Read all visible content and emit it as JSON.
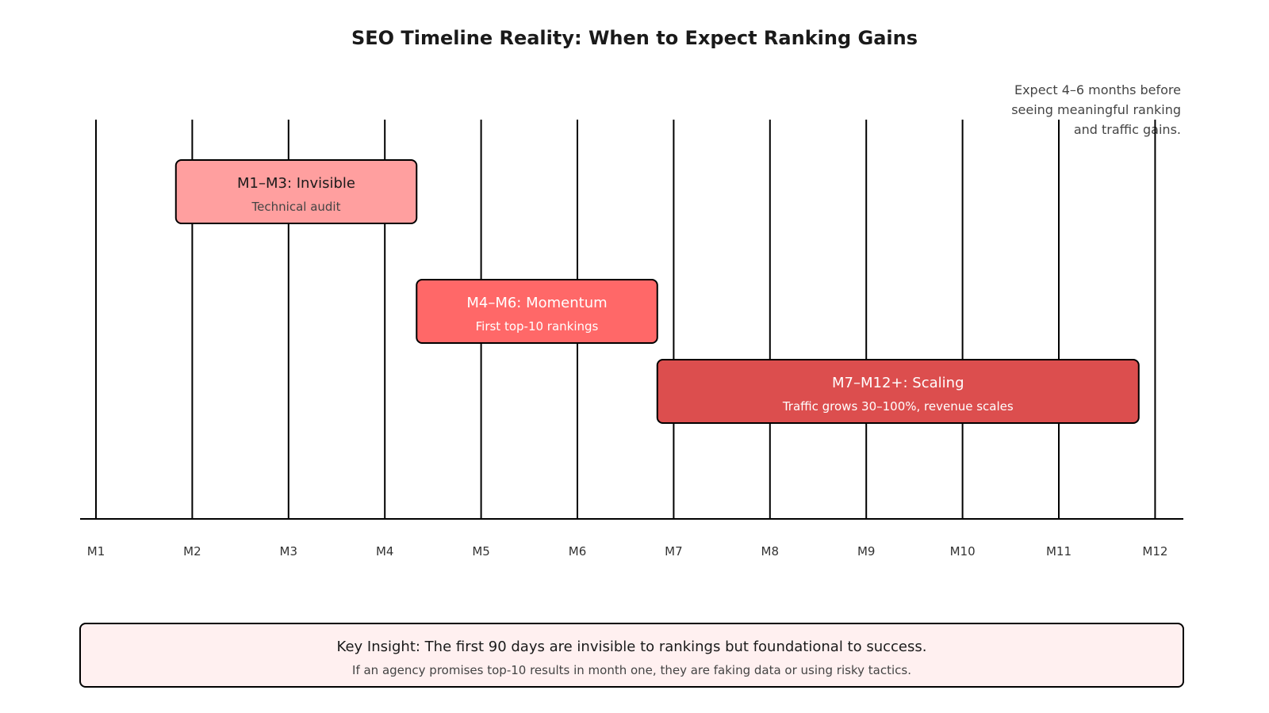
{
  "title": "SEO Timeline Reality: When to Expect Ranking Gains",
  "note": "Expect 4–6 months before\nseeing meaningful ranking\nand traffic gains.",
  "months": [
    "M1",
    "M2",
    "M3",
    "M4",
    "M5",
    "M6",
    "M7",
    "M8",
    "M9",
    "M10",
    "M11",
    "M12"
  ],
  "phases": [
    {
      "title": "M1–M3: Invisible",
      "subtitle": "Technical audit",
      "start": 0.83,
      "end": 3.33,
      "color": "#ff9f9f",
      "text_style": "dark"
    },
    {
      "title": "M4–M6: Momentum",
      "subtitle": "First top-10 rankings",
      "start": 3.33,
      "end": 5.83,
      "color": "#ff6868",
      "text_style": "light"
    },
    {
      "title": "M7–M12+: Scaling",
      "subtitle": "Traffic grows 30–100%, revenue scales",
      "start": 5.83,
      "end": 10.83,
      "color": "#dc4e4e",
      "text_style": "light"
    }
  ],
  "insight": {
    "title": "Key Insight: The first 90 days are invisible to rankings but foundational to success.",
    "subtitle": "If an agency promises top-10 results in month one, they are faking data or using risky tactics.",
    "color": "#fff0f0"
  }
}
